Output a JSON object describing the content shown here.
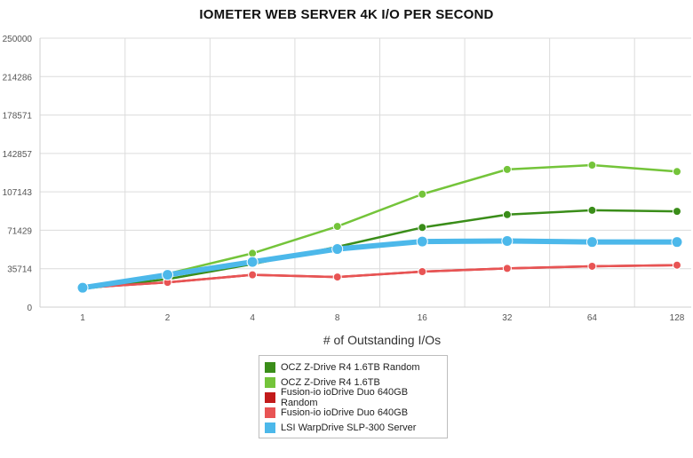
{
  "chart_data": {
    "type": "line",
    "title": "IOMETER WEB SERVER 4K I/O PER SECOND",
    "xlabel": "# of Outstanding I/Os",
    "ylabel": "",
    "categories": [
      "1",
      "2",
      "4",
      "8",
      "16",
      "32",
      "64",
      "128"
    ],
    "y_ticks": [
      "0",
      "35714",
      "71429",
      "107143",
      "142857",
      "178571",
      "214286",
      "250000"
    ],
    "ylim": [
      0,
      250000
    ],
    "grid": true,
    "legend_position": "bottom-center",
    "series": [
      {
        "name": "OCZ Z-Drive R4 1.6TB Random",
        "color": "#3a8d19",
        "values": [
          17000,
          26000,
          40000,
          56000,
          74000,
          86000,
          90000,
          89000
        ]
      },
      {
        "name": "OCZ Z-Drive R4 1.6TB",
        "color": "#74c43a",
        "values": [
          18000,
          31000,
          50000,
          75000,
          105000,
          128000,
          132000,
          126000
        ]
      },
      {
        "name": "Fusion-io ioDrive Duo 640GB Random",
        "color": "#c21b1b",
        "values": [
          18000,
          23000,
          30000,
          28000,
          33000,
          36000,
          38000,
          39000
        ]
      },
      {
        "name": "Fusion-io ioDrive Duo 640GB",
        "color": "#e85454",
        "values": [
          18000,
          23000,
          30000,
          28000,
          33000,
          36000,
          38000,
          39000
        ]
      },
      {
        "name": "LSI WarpDrive SLP-300 Server",
        "color": "#4cb8ea",
        "values": [
          18000,
          30000,
          42000,
          54000,
          61000,
          61500,
          60500,
          60500
        ]
      }
    ]
  }
}
